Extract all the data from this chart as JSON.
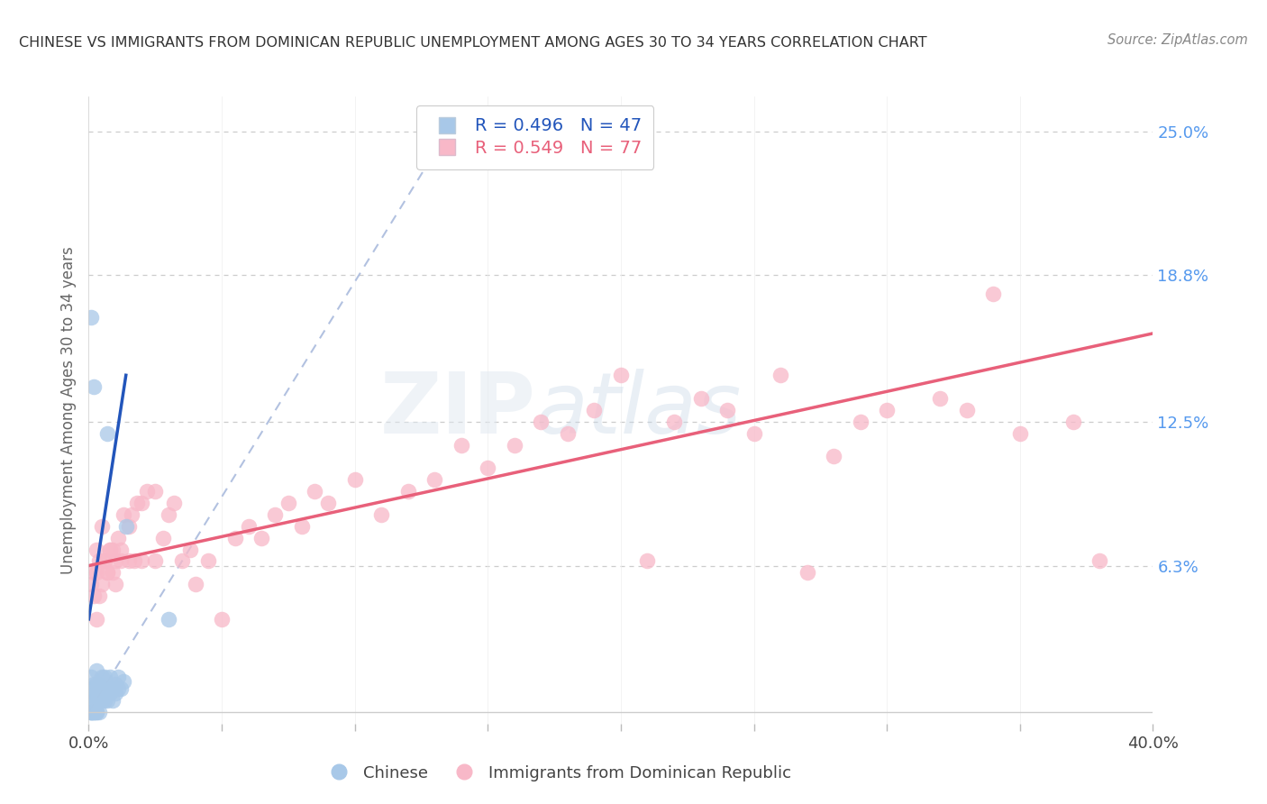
{
  "title": "CHINESE VS IMMIGRANTS FROM DOMINICAN REPUBLIC UNEMPLOYMENT AMONG AGES 30 TO 34 YEARS CORRELATION CHART",
  "source": "Source: ZipAtlas.com",
  "ylabel": "Unemployment Among Ages 30 to 34 years",
  "xlim": [
    0.0,
    0.4
  ],
  "ylim": [
    -0.005,
    0.265
  ],
  "yticks_right": [
    0.063,
    0.125,
    0.188,
    0.25
  ],
  "ytick_labels_right": [
    "6.3%",
    "12.5%",
    "18.8%",
    "25.0%"
  ],
  "blue_color": "#A8C8E8",
  "pink_color": "#F8B8C8",
  "trend_blue": "#2255BB",
  "trend_pink": "#E8607A",
  "ref_line_color": "#AABBDD",
  "background_color": "#FFFFFF",
  "blue_x": [
    0.001,
    0.001,
    0.001,
    0.001,
    0.001,
    0.001,
    0.002,
    0.002,
    0.002,
    0.002,
    0.002,
    0.002,
    0.002,
    0.003,
    0.003,
    0.003,
    0.003,
    0.003,
    0.003,
    0.004,
    0.004,
    0.004,
    0.004,
    0.005,
    0.005,
    0.005,
    0.005,
    0.006,
    0.006,
    0.006,
    0.007,
    0.007,
    0.007,
    0.008,
    0.008,
    0.009,
    0.009,
    0.01,
    0.01,
    0.011,
    0.011,
    0.012,
    0.013,
    0.014,
    0.03,
    0.001,
    0.002
  ],
  "blue_y": [
    0.0,
    0.0,
    0.0,
    0.0,
    0.01,
    0.015,
    0.0,
    0.0,
    0.0,
    0.005,
    0.005,
    0.008,
    0.012,
    0.0,
    0.0,
    0.005,
    0.008,
    0.012,
    0.018,
    0.0,
    0.005,
    0.008,
    0.012,
    0.005,
    0.008,
    0.01,
    0.015,
    0.005,
    0.01,
    0.015,
    0.005,
    0.01,
    0.12,
    0.008,
    0.015,
    0.005,
    0.01,
    0.008,
    0.012,
    0.01,
    0.015,
    0.01,
    0.013,
    0.08,
    0.04,
    0.17,
    0.14
  ],
  "pink_x": [
    0.001,
    0.002,
    0.003,
    0.003,
    0.004,
    0.005,
    0.005,
    0.006,
    0.007,
    0.008,
    0.009,
    0.01,
    0.011,
    0.012,
    0.013,
    0.015,
    0.016,
    0.018,
    0.02,
    0.022,
    0.025,
    0.028,
    0.03,
    0.032,
    0.035,
    0.038,
    0.04,
    0.045,
    0.05,
    0.055,
    0.06,
    0.065,
    0.07,
    0.075,
    0.08,
    0.085,
    0.09,
    0.1,
    0.11,
    0.12,
    0.13,
    0.14,
    0.15,
    0.16,
    0.17,
    0.18,
    0.19,
    0.2,
    0.21,
    0.22,
    0.23,
    0.24,
    0.25,
    0.26,
    0.27,
    0.28,
    0.29,
    0.3,
    0.32,
    0.33,
    0.34,
    0.35,
    0.37,
    0.38,
    0.002,
    0.003,
    0.004,
    0.006,
    0.007,
    0.008,
    0.009,
    0.01,
    0.012,
    0.015,
    0.017,
    0.02,
    0.025
  ],
  "pink_y": [
    0.055,
    0.06,
    0.04,
    0.07,
    0.05,
    0.055,
    0.08,
    0.065,
    0.06,
    0.07,
    0.07,
    0.055,
    0.075,
    0.065,
    0.085,
    0.08,
    0.085,
    0.09,
    0.09,
    0.095,
    0.095,
    0.075,
    0.085,
    0.09,
    0.065,
    0.07,
    0.055,
    0.065,
    0.04,
    0.075,
    0.08,
    0.075,
    0.085,
    0.09,
    0.08,
    0.095,
    0.09,
    0.1,
    0.085,
    0.095,
    0.1,
    0.115,
    0.105,
    0.115,
    0.125,
    0.12,
    0.13,
    0.145,
    0.065,
    0.125,
    0.135,
    0.13,
    0.12,
    0.145,
    0.06,
    0.11,
    0.125,
    0.13,
    0.135,
    0.13,
    0.18,
    0.12,
    0.125,
    0.065,
    0.05,
    0.06,
    0.065,
    0.065,
    0.06,
    0.07,
    0.06,
    0.065,
    0.07,
    0.065,
    0.065,
    0.065,
    0.065
  ],
  "blue_trend_x": [
    0.0,
    0.014
  ],
  "blue_trend_y": [
    0.04,
    0.145
  ],
  "pink_trend_x": [
    0.0,
    0.4
  ],
  "pink_trend_y": [
    0.063,
    0.163
  ],
  "ref_line_x": [
    0.0,
    0.135
  ],
  "ref_line_y": [
    0.0,
    0.25
  ]
}
